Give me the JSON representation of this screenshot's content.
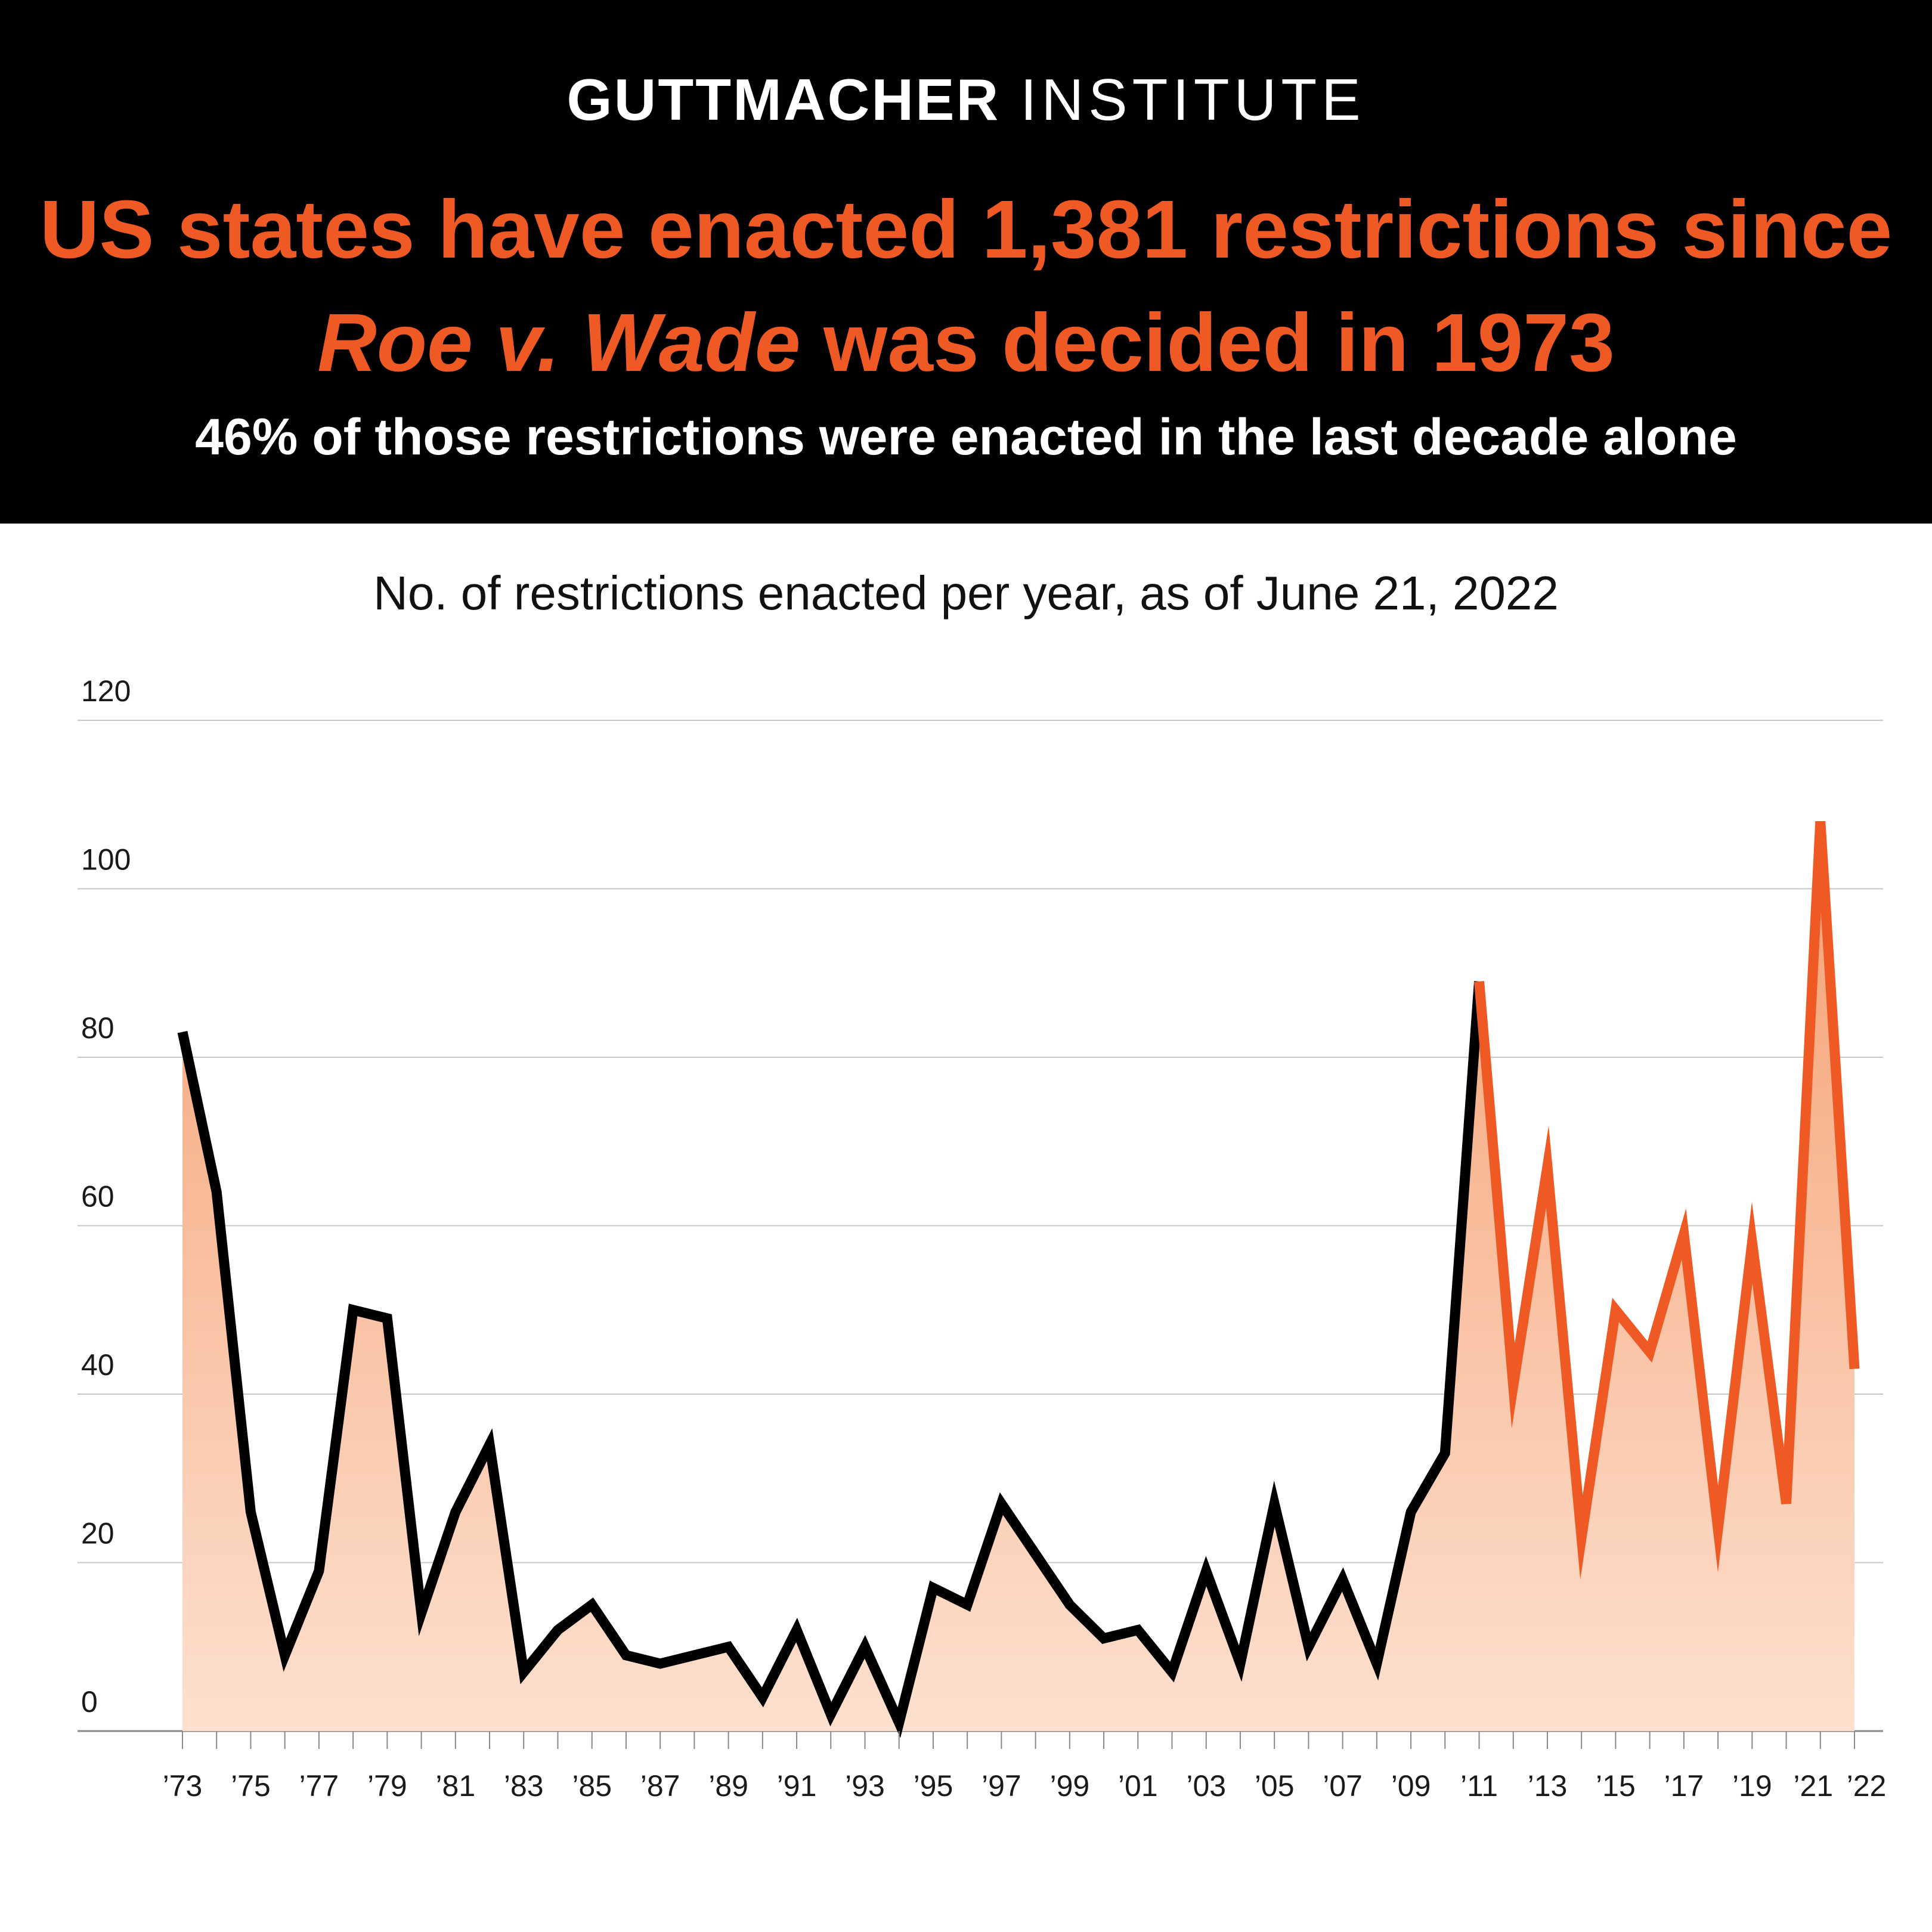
{
  "header": {
    "brand_bold": "GUTTMACHER",
    "brand_light": "INSTITUTE",
    "headline_line1": "US states have enacted 1,381 restrictions since",
    "headline_italic": "Roe v. Wade",
    "headline_line2_rest": "was decided in 1973",
    "subhead": "46% of those restrictions were enacted in the last decade alone"
  },
  "colors": {
    "background_header": "#000000",
    "accent_orange": "#ef5a24",
    "line_black": "#000000",
    "fill_top": "#f5a072",
    "fill_bottom": "#fde0cf",
    "gridline": "#c8c8c8"
  },
  "chart_data": {
    "type": "area",
    "title": "",
    "subtitle": "No. of restrictions enacted per year, as of June 21, 2022",
    "xlabel": "",
    "ylabel": "",
    "ylim": [
      0,
      120
    ],
    "yticks": [
      0,
      20,
      40,
      60,
      80,
      100,
      120
    ],
    "grid": true,
    "x": [
      1973,
      1974,
      1975,
      1976,
      1977,
      1978,
      1979,
      1980,
      1981,
      1982,
      1983,
      1984,
      1985,
      1986,
      1987,
      1988,
      1989,
      1990,
      1991,
      1992,
      1993,
      1994,
      1995,
      1996,
      1997,
      1998,
      1999,
      2000,
      2001,
      2002,
      2003,
      2004,
      2005,
      2006,
      2007,
      2008,
      2009,
      2010,
      2011,
      2012,
      2013,
      2014,
      2015,
      2016,
      2017,
      2018,
      2019,
      2020,
      2021,
      2022
    ],
    "x_tick_labels": [
      "’73",
      "’75",
      "’77",
      "’79",
      "’81",
      "’83",
      "’85",
      "’87",
      "’89",
      "’91",
      "’93",
      "’95",
      "’97",
      "’99",
      "’01",
      "’03",
      "’05",
      "’07",
      "’09",
      "’11",
      "’13",
      "’15",
      "’17",
      "’19",
      "’21",
      "’22"
    ],
    "x_tick_years": [
      1973,
      1975,
      1977,
      1979,
      1981,
      1983,
      1985,
      1987,
      1989,
      1991,
      1993,
      1995,
      1997,
      1999,
      2001,
      2003,
      2005,
      2007,
      2009,
      2011,
      2013,
      2015,
      2017,
      2019,
      2021,
      2022
    ],
    "series": [
      {
        "values": [
          83,
          64,
          26,
          9,
          19,
          50,
          49,
          14,
          26,
          34,
          7,
          12,
          15,
          9,
          8,
          9,
          10,
          4,
          12,
          2,
          10,
          1,
          17,
          15,
          27,
          21,
          15,
          11,
          12,
          7,
          19,
          8,
          27,
          10,
          18,
          8,
          26,
          33,
          89,
          41,
          67,
          23,
          50,
          45,
          59,
          24,
          58,
          27,
          108,
          43
        ],
        "highlight_from_year": 2011
      }
    ]
  }
}
